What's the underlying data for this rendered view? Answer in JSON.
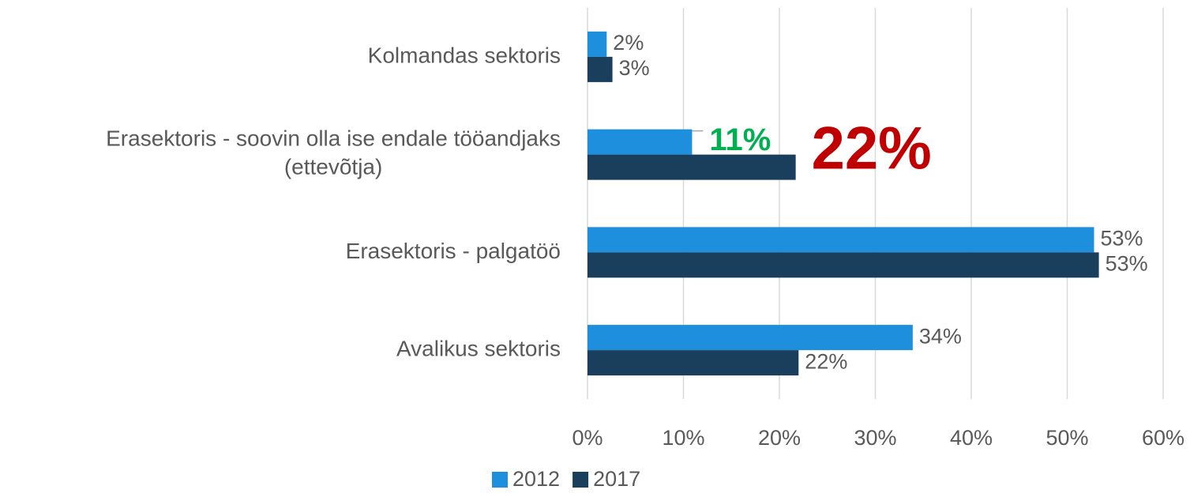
{
  "chart_data": {
    "type": "barh",
    "categories": [
      "Kolmandas sektoris",
      "Erasektoris - soovin olla ise endale tööandjaks\n(ettevõtja)",
      "Erasektoris - palgatöö",
      "Avalikus sektoris"
    ],
    "series": [
      {
        "name": "2012",
        "color": "#1e8fdc",
        "values": [
          2,
          10.9,
          52.8,
          33.9
        ],
        "value_labels": [
          "2%",
          "11%",
          "53%",
          "34%"
        ]
      },
      {
        "name": "2017",
        "color": "#1a3f5c",
        "values": [
          2.6,
          21.7,
          53.3,
          22
        ],
        "value_labels": [
          "3%",
          "22%",
          "53%",
          "22%"
        ]
      }
    ],
    "xlim": [
      0,
      60
    ],
    "xticks": [
      {
        "value": 0,
        "label": "0%"
      },
      {
        "value": 10,
        "label": "10%"
      },
      {
        "value": 20,
        "label": "20%"
      },
      {
        "value": 30,
        "label": "30%"
      },
      {
        "value": 40,
        "label": "40%"
      },
      {
        "value": 50,
        "label": "50%"
      },
      {
        "value": 60,
        "label": "60%"
      }
    ],
    "grid": true,
    "legend": "bottom"
  }
}
